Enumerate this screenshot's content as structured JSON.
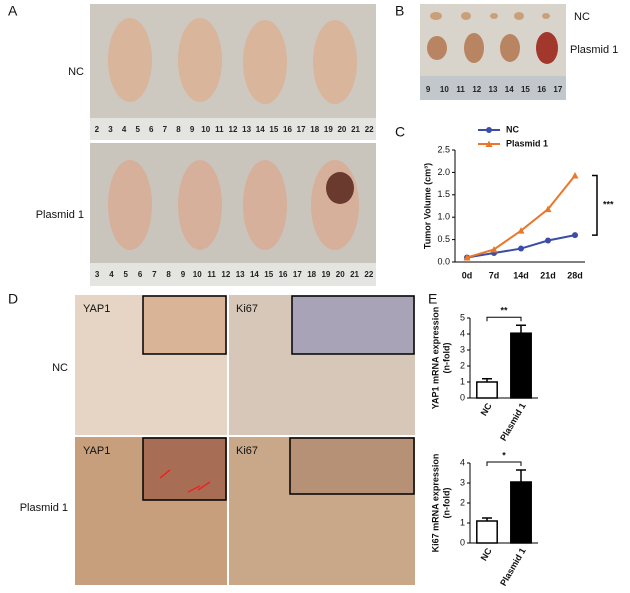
{
  "panels": {
    "a": {
      "label": "A",
      "rows": [
        "NC",
        "Plasmid 1"
      ],
      "ruler_top": [
        "2",
        "3",
        "4",
        "5",
        "6",
        "7",
        "8",
        "9",
        "10",
        "11",
        "12",
        "13",
        "14",
        "15",
        "16",
        "17",
        "18",
        "19",
        "20",
        "21",
        "22"
      ],
      "ruler_bottom": [
        "3",
        "4",
        "5",
        "6",
        "7",
        "8",
        "9",
        "10",
        "11",
        "12",
        "13",
        "14",
        "15",
        "16",
        "17",
        "18",
        "19",
        "20",
        "21",
        "22"
      ]
    },
    "b": {
      "label": "B",
      "rows": [
        "NC",
        "Plasmid 1"
      ],
      "ruler": [
        "9",
        "10",
        "11",
        "12",
        "13",
        "14",
        "15",
        "16",
        "17"
      ]
    },
    "c": {
      "label": "C"
    },
    "d": {
      "label": "D",
      "rows": [
        "NC",
        "Plasmid 1"
      ],
      "columns": [
        "YAP1",
        "Ki67"
      ]
    },
    "e": {
      "label": "E"
    }
  },
  "chart_data": [
    {
      "type": "line",
      "categories": [
        "0d",
        "7d",
        "14d",
        "21d",
        "28d"
      ],
      "series": [
        {
          "name": "NC",
          "color": "#3b4ea6",
          "marker": "circle",
          "values": [
            0.1,
            0.2,
            0.3,
            0.48,
            0.6
          ]
        },
        {
          "name": "Plasmid 1",
          "color": "#e8782a",
          "marker": "triangle",
          "values": [
            0.1,
            0.28,
            0.7,
            1.18,
            1.93
          ]
        }
      ],
      "ylabel": "Tumor Volume (cm³)",
      "ylim": [
        0,
        2.5
      ],
      "yticks": [
        {
          "value": 0,
          "label": "0.0"
        },
        {
          "value": 0.5,
          "label": "0.5"
        },
        {
          "value": 1,
          "label": "1.0"
        },
        {
          "value": 1.5,
          "label": "1.5"
        },
        {
          "value": 2,
          "label": "2.0"
        },
        {
          "value": 2.5,
          "label": "2.5"
        }
      ],
      "annotation": "***",
      "legend": "upper left"
    },
    {
      "type": "bar",
      "categories": [
        "NC",
        "Plasmid 1"
      ],
      "values": [
        1.0,
        4.05
      ],
      "errors": [
        0.2,
        0.5
      ],
      "colors": [
        "#ffffff",
        "#000000"
      ],
      "ylabel": [
        "YAP1 mRNA expression",
        "(n-fold)"
      ],
      "ylim": [
        0,
        5
      ],
      "yticks": [
        0,
        1,
        2,
        3,
        4,
        5
      ],
      "annotation": "**"
    },
    {
      "type": "bar",
      "categories": [
        "NC",
        "Plasmid 1"
      ],
      "values": [
        1.1,
        3.05
      ],
      "errors": [
        0.15,
        0.6
      ],
      "colors": [
        "#ffffff",
        "#000000"
      ],
      "ylabel": [
        "Ki67 mRNA expression",
        "(n-fold)"
      ],
      "ylim": [
        0,
        4
      ],
      "yticks": [
        0,
        1,
        2,
        3,
        4
      ],
      "annotation": "*"
    }
  ]
}
